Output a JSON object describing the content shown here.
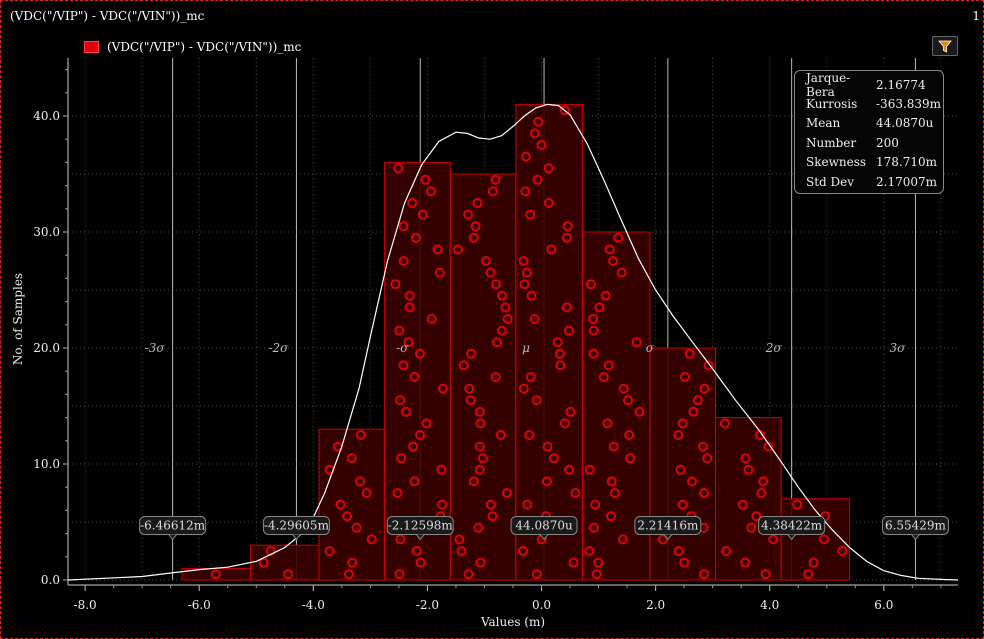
{
  "window": {
    "title": "(VDC(\"/VIP\") - VDC(\"/VIN\"))_mc",
    "corner_text": "1"
  },
  "legend": {
    "label": "(VDC(\"/VIP\") - VDC(\"/VIN\"))_mc",
    "color": "#e0000a"
  },
  "toolbar": {
    "filter_icon": "filter-icon",
    "filter_color": "#e08a00"
  },
  "stats": [
    {
      "name": "Jarque-Bera",
      "value": "2.16774"
    },
    {
      "name": "Kurrosis",
      "value": "-363.839m"
    },
    {
      "name": "Mean",
      "value": "44.0870u"
    },
    {
      "name": "Number",
      "value": "200"
    },
    {
      "name": "Skewness",
      "value": "178.710m"
    },
    {
      "name": "Std Dev",
      "value": "2.17007m"
    }
  ],
  "chart_data": {
    "type": "bar",
    "title": "",
    "xlabel": "Values (m)",
    "ylabel": "No. of Samples",
    "xlim": [
      -8.3,
      7.3
    ],
    "ylim": [
      0,
      45
    ],
    "x_ticks": [
      "-8.0",
      "-6.0",
      "-4.0",
      "-2.0",
      "0.0",
      "2.0",
      "4.0",
      "6.0"
    ],
    "x_tick_values": [
      -8,
      -6,
      -4,
      -2,
      0,
      2,
      4,
      6
    ],
    "y_ticks": [
      "0.0",
      "10.0",
      "20.0",
      "30.0",
      "40.0"
    ],
    "y_tick_values": [
      0,
      10,
      20,
      30,
      40
    ],
    "grid": true,
    "bins": [
      {
        "x0": -6.3,
        "x1": -5.1,
        "count": 1
      },
      {
        "x0": -5.1,
        "x1": -3.9,
        "count": 3
      },
      {
        "x0": -3.9,
        "x1": -2.75,
        "count": 13
      },
      {
        "x0": -2.75,
        "x1": -1.6,
        "count": 36
      },
      {
        "x0": -1.6,
        "x1": -0.45,
        "count": 35
      },
      {
        "x0": -0.45,
        "x1": 0.72,
        "count": 41
      },
      {
        "x0": 0.72,
        "x1": 1.9,
        "count": 30
      },
      {
        "x0": 1.9,
        "x1": 3.05,
        "count": 20
      },
      {
        "x0": 3.05,
        "x1": 4.2,
        "count": 14
      },
      {
        "x0": 4.2,
        "x1": 5.4,
        "count": 7
      }
    ],
    "bar_color": "#e0000a",
    "sigma_lines": [
      {
        "label": "-3σ",
        "x": -6.46612,
        "value_label": "-6.46612m"
      },
      {
        "label": "-2σ",
        "x": -4.29605,
        "value_label": "-4.29605m"
      },
      {
        "label": "-σ",
        "x": -2.12598,
        "value_label": "-2.12598m"
      },
      {
        "label": "μ",
        "x": 0.04409,
        "value_label": "44.0870u"
      },
      {
        "label": "σ",
        "x": 2.21416,
        "value_label": "2.21416m"
      },
      {
        "label": "2σ",
        "x": 4.38422,
        "value_label": "4.38422m"
      },
      {
        "label": "3σ",
        "x": 6.55429,
        "value_label": "6.55429m"
      }
    ],
    "density_curve": {
      "x": [
        -8.3,
        -7.0,
        -6.5,
        -6.0,
        -5.5,
        -5.0,
        -4.5,
        -4.2,
        -4.0,
        -3.8,
        -3.5,
        -3.2,
        -3.0,
        -2.7,
        -2.4,
        -2.1,
        -1.8,
        -1.5,
        -1.3,
        -1.1,
        -0.9,
        -0.7,
        -0.5,
        -0.3,
        -0.1,
        0.1,
        0.3,
        0.5,
        0.8,
        1.1,
        1.4,
        1.7,
        2.0,
        2.3,
        2.6,
        3.0,
        3.4,
        3.8,
        4.2,
        4.5,
        4.8,
        5.1,
        5.4,
        5.7,
        6.0,
        6.3,
        6.6,
        7.0,
        7.3
      ],
      "y": [
        0.0,
        0.3,
        0.6,
        0.9,
        1.1,
        1.6,
        2.8,
        4.0,
        5.4,
        7.5,
        11.5,
        16.5,
        21.0,
        27.5,
        32.5,
        35.8,
        37.8,
        38.6,
        38.5,
        38.1,
        38.0,
        38.3,
        39.1,
        40.0,
        40.7,
        41.0,
        40.9,
        40.1,
        37.6,
        34.4,
        31.0,
        27.7,
        25.0,
        22.8,
        20.8,
        18.2,
        15.5,
        13.0,
        10.2,
        8.0,
        6.0,
        4.3,
        2.8,
        1.6,
        0.8,
        0.4,
        0.15,
        0.05,
        0.0
      ]
    }
  }
}
